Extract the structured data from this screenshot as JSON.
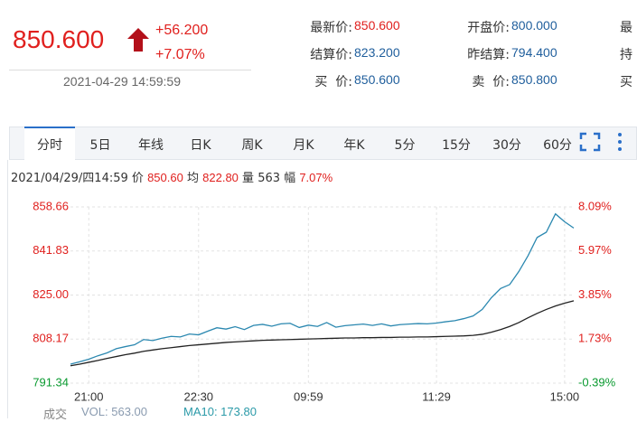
{
  "quote": {
    "price": "850.600",
    "change": "+56.200",
    "change_pct": "+7.07%",
    "time": "2021-04-29 14:59:59",
    "fields": [
      [
        {
          "label": "最新价:",
          "value": "850.600"
        },
        {
          "label": "开盘价:",
          "value": "800.000"
        },
        {
          "label": "最"
        }
      ],
      [
        {
          "label": "结算价:",
          "value": "823.200"
        },
        {
          "label": "昨结算:",
          "value": "794.400"
        },
        {
          "label": "持"
        }
      ],
      [
        {
          "label": "买  价:",
          "value": "850.600"
        },
        {
          "label": "卖  价:",
          "value": "850.800"
        },
        {
          "label": "买"
        }
      ]
    ]
  },
  "tabs": [
    "分时",
    "5日",
    "年线",
    "日K",
    "周K",
    "月K",
    "年K",
    "5分",
    "15分",
    "30分",
    "60分"
  ],
  "info": {
    "datetime": "2021/04/29/四14:59",
    "price_label": "价",
    "price": "850.60",
    "avg_label": "均",
    "avg": "822.80",
    "volume_label": "量",
    "volume": "563",
    "change_label": "幅",
    "change": "7.07%"
  },
  "chart_data": {
    "type": "line",
    "categories": [
      null,
      null,
      "21:00",
      null,
      null,
      null,
      null,
      null,
      null,
      null,
      null,
      null,
      null,
      null,
      "22:30",
      null,
      null,
      null,
      null,
      null,
      null,
      null,
      null,
      null,
      null,
      null,
      "09:59",
      null,
      null,
      null,
      null,
      null,
      null,
      null,
      null,
      null,
      null,
      null,
      null,
      null,
      "11:29",
      null,
      null,
      null,
      null,
      null,
      null,
      null,
      null,
      null,
      null,
      null,
      null,
      null,
      "15:00",
      null
    ],
    "series": [
      {
        "name": "价",
        "color": "#2b88b0",
        "values": [
          798.6,
          799.5,
          800.5,
          801.8,
          802.9,
          804.5,
          805.3,
          806.0,
          808.0,
          807.6,
          808.5,
          809.2,
          809.0,
          810.1,
          809.8,
          811.2,
          812.5,
          812.0,
          812.9,
          811.8,
          813.4,
          813.8,
          813.1,
          814.0,
          814.2,
          812.6,
          813.5,
          813.0,
          814.5,
          812.7,
          813.3,
          813.6,
          813.9,
          813.4,
          814.0,
          813.2,
          813.7,
          813.9,
          814.1,
          814.0,
          814.3,
          814.8,
          815.2,
          816.0,
          817.0,
          819.5,
          824.0,
          827.5,
          829.0,
          834.0,
          840.0,
          847.0,
          849.0,
          856.0,
          853.0,
          850.6
        ]
      },
      {
        "name": "均",
        "color": "#222222",
        "values": [
          798.0,
          798.6,
          799.3,
          800.0,
          800.8,
          801.5,
          802.2,
          802.8,
          803.5,
          804.0,
          804.5,
          804.9,
          805.3,
          805.7,
          806.0,
          806.3,
          806.6,
          806.9,
          807.1,
          807.3,
          807.5,
          807.7,
          807.8,
          807.9,
          808.0,
          808.1,
          808.2,
          808.3,
          808.4,
          808.5,
          808.6,
          808.6,
          808.7,
          808.7,
          808.8,
          808.8,
          808.9,
          808.9,
          809.0,
          809.0,
          809.1,
          809.2,
          809.3,
          809.4,
          809.6,
          810.0,
          810.8,
          811.8,
          813.0,
          814.5,
          816.3,
          818.0,
          819.5,
          820.8,
          821.9,
          822.8
        ]
      }
    ],
    "ylim": [
      791.34,
      858.66
    ],
    "yticks": [
      858.66,
      841.83,
      {
        "value": 825,
        "label": "825.00"
      },
      808.17,
      791.34
    ],
    "y2lim": [
      -0.39,
      8.09
    ],
    "y2ticks": [
      {
        "value": 8.09,
        "label": "8.09%"
      },
      {
        "value": 5.97,
        "label": "5.97%"
      },
      {
        "value": 3.85,
        "label": "3.85%"
      },
      {
        "value": 1.73,
        "label": "1.73%"
      },
      {
        "value": -0.39,
        "label": "-0.39%"
      }
    ],
    "grid": true,
    "up_color": "#e0201e",
    "down_color": "#0a9a30"
  },
  "footer": {
    "label": "成交",
    "vol": "VOL: 563.00",
    "ma10": "MA10: 173.80"
  }
}
